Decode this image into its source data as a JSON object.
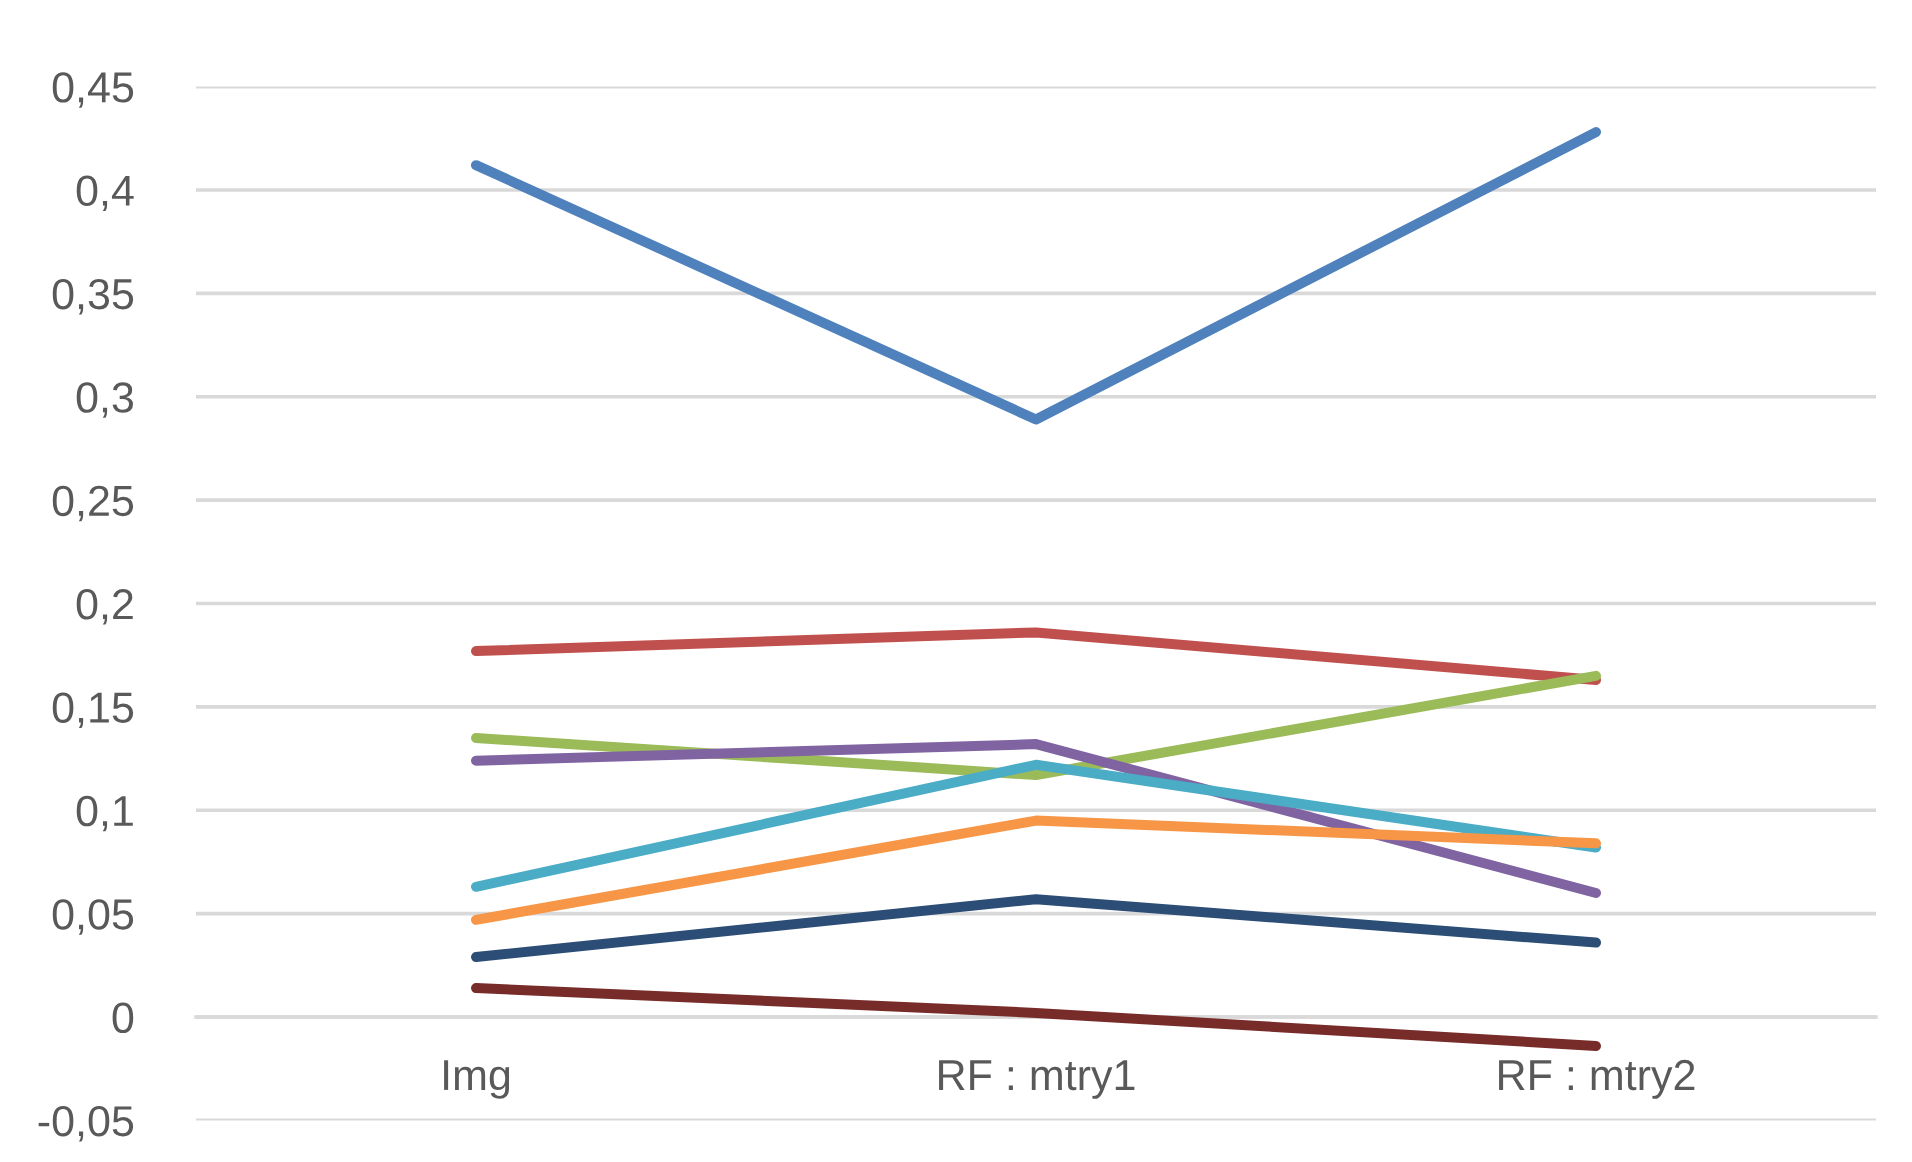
{
  "chart_data": {
    "type": "line",
    "categories": [
      "Img",
      "RF : mtry1",
      "RF : mtry2"
    ],
    "series": [
      {
        "color": "#4f81bd",
        "values": [
          0.412,
          0.289,
          0.428
        ]
      },
      {
        "color": "#c0504d",
        "values": [
          0.177,
          0.186,
          0.163
        ]
      },
      {
        "color": "#9bbb59",
        "values": [
          0.135,
          0.117,
          0.165
        ]
      },
      {
        "color": "#8064a2",
        "values": [
          0.124,
          0.132,
          0.06
        ]
      },
      {
        "color": "#4bacc6",
        "values": [
          0.063,
          0.122,
          0.082
        ]
      },
      {
        "color": "#f79646",
        "values": [
          0.047,
          0.095,
          0.084
        ]
      },
      {
        "color": "#2c4d75",
        "values": [
          0.029,
          0.057,
          0.036
        ]
      },
      {
        "color": "#772c2a",
        "values": [
          0.014,
          0.002,
          -0.014
        ]
      }
    ],
    "ylim": [
      -0.05,
      0.45
    ],
    "yticks": [
      {
        "value": -0.05,
        "label": "-0,05"
      },
      {
        "value": 0,
        "label": "0"
      },
      {
        "value": 0.05,
        "label": "0,05"
      },
      {
        "value": 0.1,
        "label": "0,1"
      },
      {
        "value": 0.15,
        "label": "0,15"
      },
      {
        "value": 0.2,
        "label": "0,2"
      },
      {
        "value": 0.25,
        "label": "0,25"
      },
      {
        "value": 0.3,
        "label": "0,3"
      },
      {
        "value": 0.35,
        "label": "0,35"
      },
      {
        "value": 0.4,
        "label": "0,4"
      },
      {
        "value": 0.45,
        "label": "0,45"
      }
    ],
    "grid": "y",
    "marker": "none",
    "line_style": "solid"
  }
}
